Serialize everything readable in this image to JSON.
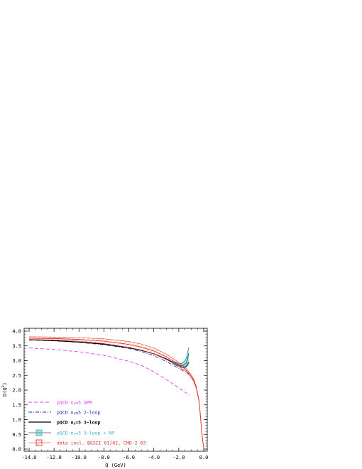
{
  "chart_data": {
    "type": "line",
    "title": "",
    "xlabel": "Q (GeV)",
    "ylabel": "D(Q²)",
    "xlim": [
      -14.0,
      0.0
    ],
    "ylim": [
      0.0,
      4.0
    ],
    "x_ticks": [
      "-14.0",
      "-12.0",
      "-10.0",
      "-8.0",
      "-6.0",
      "-4.0",
      "-2.0",
      "0.0"
    ],
    "y_ticks": [
      "0.0",
      "0.5",
      "1.0",
      "1.5",
      "2.0",
      "2.5",
      "3.0",
      "3.5",
      "4.0"
    ],
    "grid": false,
    "legend_position": "bottom-left",
    "series": [
      {
        "name": "pQCD nf=5 QPM",
        "color": "#e040e0",
        "style": "dashed",
        "x": [
          -14.0,
          -12.0,
          -10.0,
          -8.0,
          -6.0,
          -5.0,
          -4.0,
          -3.0,
          -2.0,
          -1.5,
          -1.2,
          -1.1
        ],
        "y": [
          3.43,
          3.38,
          3.3,
          3.18,
          2.98,
          2.84,
          2.62,
          2.36,
          2.08,
          1.93,
          1.85,
          1.82
        ]
      },
      {
        "name": "pQCD nf=5 2-loop",
        "color": "#2020c0",
        "style": "dashdot",
        "x": [
          -14.0,
          -12.0,
          -10.0,
          -8.0,
          -6.0,
          -5.0,
          -4.0,
          -3.0,
          -2.0,
          -1.5,
          -1.2,
          -1.1
        ],
        "y": [
          3.7,
          3.67,
          3.62,
          3.54,
          3.41,
          3.31,
          3.17,
          2.97,
          2.74,
          2.62,
          2.56,
          2.55
        ]
      },
      {
        "name": "pQCD nf=5 3-loop",
        "color": "#000000",
        "style": "solid",
        "x": [
          -14.0,
          -12.0,
          -10.0,
          -8.0,
          -6.0,
          -5.0,
          -4.0,
          -3.0,
          -2.5,
          -2.0,
          -1.7,
          -1.5,
          -1.3,
          -1.2
        ],
        "y": [
          3.71,
          3.68,
          3.63,
          3.56,
          3.44,
          3.35,
          3.23,
          3.06,
          2.95,
          2.84,
          2.78,
          2.78,
          2.86,
          2.95
        ]
      },
      {
        "name": "pQCD nf=5 3-loop + NP",
        "color": "#30b8c0",
        "style": "band",
        "x": [
          -2.5,
          -2.2,
          -2.0,
          -1.8,
          -1.6,
          -1.4,
          -1.3,
          -1.2
        ],
        "y": [
          2.95,
          2.88,
          2.85,
          2.83,
          2.85,
          2.92,
          3.05,
          3.25
        ],
        "y_low": [
          2.9,
          2.83,
          2.8,
          2.77,
          2.76,
          2.78,
          2.82,
          2.92
        ],
        "y_high": [
          3.0,
          2.94,
          2.91,
          2.9,
          2.96,
          3.08,
          3.26,
          3.45
        ]
      },
      {
        "name": "data incl. BESII 01/02, CMD-2 03",
        "color": "#e03020",
        "style": "band",
        "x": [
          -14.0,
          -12.0,
          -10.0,
          -8.0,
          -6.0,
          -5.0,
          -4.0,
          -3.0,
          -2.5,
          -2.0,
          -1.5,
          -1.0,
          -0.8,
          -0.6,
          -0.4,
          -0.3,
          -0.2,
          -0.1,
          0.0
        ],
        "y": [
          3.76,
          3.75,
          3.72,
          3.66,
          3.55,
          3.46,
          3.33,
          3.13,
          3.0,
          2.87,
          2.72,
          2.47,
          2.33,
          2.1,
          1.7,
          1.3,
          0.8,
          0.35,
          0.05
        ],
        "y_low": [
          3.72,
          3.7,
          3.66,
          3.58,
          3.45,
          3.36,
          3.23,
          3.04,
          2.92,
          2.8,
          2.66,
          2.42,
          2.29,
          2.07,
          1.68,
          1.28,
          0.79,
          0.34,
          0.05
        ],
        "y_high": [
          3.81,
          3.8,
          3.78,
          3.74,
          3.65,
          3.56,
          3.43,
          3.22,
          3.08,
          2.94,
          2.78,
          2.52,
          2.37,
          2.13,
          1.72,
          1.32,
          0.81,
          0.36,
          0.05
        ]
      }
    ]
  },
  "legend": [
    {
      "prefix": "pQCD n",
      "sub": "f",
      "rest": "=5 QPM",
      "color": "#e040e0",
      "sample": "dashed"
    },
    {
      "prefix": "pQCD n",
      "sub": "f",
      "rest": "=5 2-loop",
      "color": "#2020c0",
      "sample": "dashdot"
    },
    {
      "prefix": "pQCD n",
      "sub": "f",
      "rest": "=5 3-loop",
      "color": "#000000",
      "sample": "solid"
    },
    {
      "prefix": "pQCD n",
      "sub": "f",
      "rest": "=5 3-loop + NP",
      "color": "#30b8c0",
      "sample": "box-cyan"
    },
    {
      "prefix": "data incl. BESII 01/02, CMD-2 03",
      "sub": "",
      "rest": "",
      "color": "#e03020",
      "sample": "box-hatch"
    }
  ]
}
